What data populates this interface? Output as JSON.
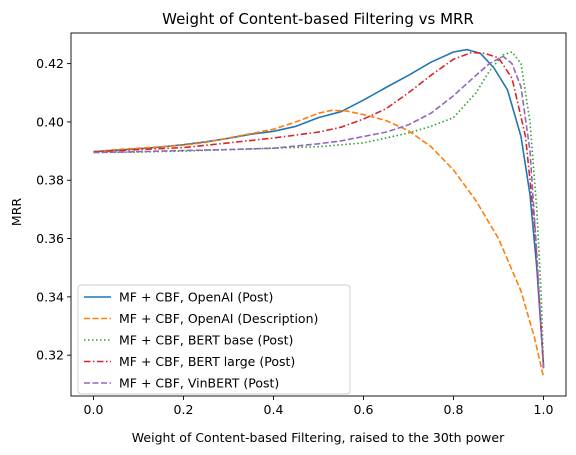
{
  "chart_data": {
    "type": "line",
    "title": "Weight of Content-based Filtering vs MRR",
    "xlabel": "Weight of Content-based Filtering, raised to the 30th power",
    "ylabel": "MRR",
    "xlim": [
      -0.05,
      1.05
    ],
    "ylim": [
      0.306,
      0.4305
    ],
    "xticks": [
      0.0,
      0.2,
      0.4,
      0.6,
      0.8,
      1.0
    ],
    "xtick_labels": [
      "0.0",
      "0.2",
      "0.4",
      "0.6",
      "0.8",
      "1.0"
    ],
    "yticks": [
      0.32,
      0.34,
      0.36,
      0.38,
      0.4,
      0.42
    ],
    "ytick_labels": [
      "0.32",
      "0.34",
      "0.36",
      "0.38",
      "0.40",
      "0.42"
    ],
    "grid": false,
    "legend_position": "lower-left",
    "series": [
      {
        "name": "MF + CBF, OpenAI (Post)",
        "color": "#1f77b4",
        "dash": "solid",
        "points": [
          [
            0.0,
            0.3898
          ],
          [
            0.05,
            0.3903
          ],
          [
            0.1,
            0.3908
          ],
          [
            0.15,
            0.3914
          ],
          [
            0.2,
            0.3922
          ],
          [
            0.25,
            0.3932
          ],
          [
            0.3,
            0.3944
          ],
          [
            0.35,
            0.3958
          ],
          [
            0.4,
            0.3968
          ],
          [
            0.45,
            0.3985
          ],
          [
            0.5,
            0.4015
          ],
          [
            0.55,
            0.4035
          ],
          [
            0.6,
            0.4075
          ],
          [
            0.65,
            0.4118
          ],
          [
            0.7,
            0.416
          ],
          [
            0.75,
            0.4205
          ],
          [
            0.8,
            0.424
          ],
          [
            0.83,
            0.4248
          ],
          [
            0.86,
            0.4235
          ],
          [
            0.89,
            0.4185
          ],
          [
            0.92,
            0.411
          ],
          [
            0.95,
            0.395
          ],
          [
            0.97,
            0.375
          ],
          [
            0.985,
            0.35
          ],
          [
            1.0,
            0.3165
          ]
        ]
      },
      {
        "name": "MF + CBF, OpenAI (Description)",
        "color": "#ff7f0e",
        "dash": "dashed",
        "points": [
          [
            0.0,
            0.3898
          ],
          [
            0.05,
            0.3905
          ],
          [
            0.1,
            0.391
          ],
          [
            0.15,
            0.3915
          ],
          [
            0.2,
            0.392
          ],
          [
            0.25,
            0.393
          ],
          [
            0.3,
            0.3945
          ],
          [
            0.35,
            0.396
          ],
          [
            0.4,
            0.3975
          ],
          [
            0.45,
            0.4
          ],
          [
            0.5,
            0.403
          ],
          [
            0.53,
            0.404
          ],
          [
            0.56,
            0.4038
          ],
          [
            0.6,
            0.4025
          ],
          [
            0.65,
            0.4005
          ],
          [
            0.7,
            0.397
          ],
          [
            0.75,
            0.3915
          ],
          [
            0.8,
            0.3835
          ],
          [
            0.85,
            0.373
          ],
          [
            0.9,
            0.36
          ],
          [
            0.95,
            0.342
          ],
          [
            0.98,
            0.326
          ],
          [
            1.0,
            0.3125
          ]
        ]
      },
      {
        "name": "MF + CBF, BERT base (Post)",
        "color": "#2ca02c",
        "dash": "dotted",
        "points": [
          [
            0.0,
            0.3895
          ],
          [
            0.1,
            0.3897
          ],
          [
            0.2,
            0.39
          ],
          [
            0.3,
            0.3905
          ],
          [
            0.4,
            0.391
          ],
          [
            0.5,
            0.3915
          ],
          [
            0.6,
            0.3928
          ],
          [
            0.65,
            0.3945
          ],
          [
            0.7,
            0.3962
          ],
          [
            0.75,
            0.3985
          ],
          [
            0.8,
            0.4015
          ],
          [
            0.85,
            0.41
          ],
          [
            0.88,
            0.4175
          ],
          [
            0.91,
            0.423
          ],
          [
            0.93,
            0.424
          ],
          [
            0.95,
            0.42
          ],
          [
            0.97,
            0.4
          ],
          [
            0.985,
            0.37
          ],
          [
            0.995,
            0.34
          ],
          [
            1.0,
            0.3155
          ]
        ]
      },
      {
        "name": "MF + CBF, BERT large (Post)",
        "color": "#d62728",
        "dash": "dashdot",
        "points": [
          [
            0.0,
            0.3898
          ],
          [
            0.1,
            0.3905
          ],
          [
            0.2,
            0.3912
          ],
          [
            0.3,
            0.3928
          ],
          [
            0.4,
            0.3945
          ],
          [
            0.5,
            0.3965
          ],
          [
            0.55,
            0.3982
          ],
          [
            0.6,
            0.401
          ],
          [
            0.65,
            0.4045
          ],
          [
            0.7,
            0.41
          ],
          [
            0.75,
            0.416
          ],
          [
            0.8,
            0.4215
          ],
          [
            0.84,
            0.4238
          ],
          [
            0.87,
            0.4235
          ],
          [
            0.9,
            0.422
          ],
          [
            0.93,
            0.415
          ],
          [
            0.96,
            0.395
          ],
          [
            0.98,
            0.365
          ],
          [
            1.0,
            0.316
          ]
        ]
      },
      {
        "name": "MF + CBF, VinBERT (Post)",
        "color": "#9467bd",
        "dash": "dashed",
        "points": [
          [
            0.0,
            0.3895
          ],
          [
            0.1,
            0.3898
          ],
          [
            0.2,
            0.3902
          ],
          [
            0.3,
            0.3905
          ],
          [
            0.4,
            0.391
          ],
          [
            0.5,
            0.3925
          ],
          [
            0.55,
            0.3935
          ],
          [
            0.6,
            0.395
          ],
          [
            0.65,
            0.3965
          ],
          [
            0.7,
            0.399
          ],
          [
            0.75,
            0.403
          ],
          [
            0.8,
            0.409
          ],
          [
            0.85,
            0.416
          ],
          [
            0.88,
            0.42
          ],
          [
            0.91,
            0.4225
          ],
          [
            0.93,
            0.42
          ],
          [
            0.95,
            0.412
          ],
          [
            0.97,
            0.39
          ],
          [
            0.985,
            0.355
          ],
          [
            1.0,
            0.315
          ]
        ]
      }
    ]
  }
}
